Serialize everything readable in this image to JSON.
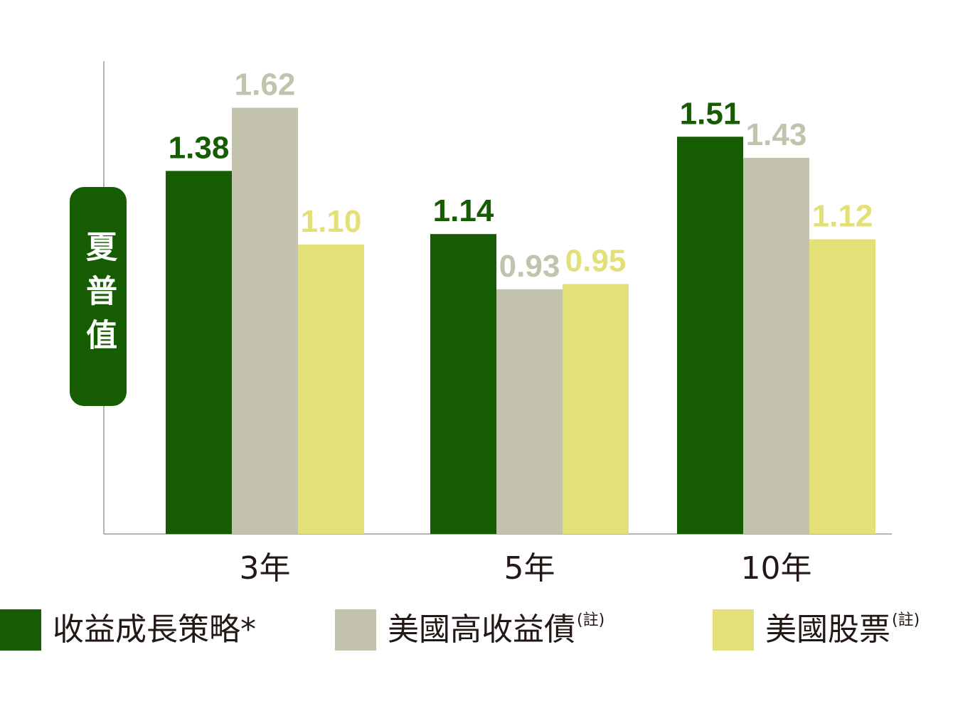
{
  "chart_data": {
    "type": "bar",
    "ylabel": "夏普值",
    "categories": [
      "3年",
      "5年",
      "10年"
    ],
    "ylim": [
      0,
      1.7
    ],
    "grid": false,
    "legend_position": "bottom",
    "series": [
      {
        "name": "收益成長策略*",
        "color": "#155c03",
        "label_color": "#155c03",
        "values": [
          1.38,
          1.14,
          1.51
        ],
        "value_labels": [
          "1.38",
          "1.14",
          "1.51"
        ]
      },
      {
        "name": "美國高收益債",
        "note": "(註)",
        "color": "#c2c2ad",
        "label_color": "#c2c2ad",
        "values": [
          1.62,
          0.93,
          1.43
        ],
        "value_labels": [
          "1.62",
          "0.93",
          "1.43"
        ]
      },
      {
        "name": "美國股票",
        "note": "(註)",
        "color": "#e3e077",
        "label_color": "#e3e077",
        "values": [
          1.1,
          0.95,
          1.12
        ],
        "value_labels": [
          "1.10",
          "0.95",
          "1.12"
        ]
      }
    ]
  }
}
